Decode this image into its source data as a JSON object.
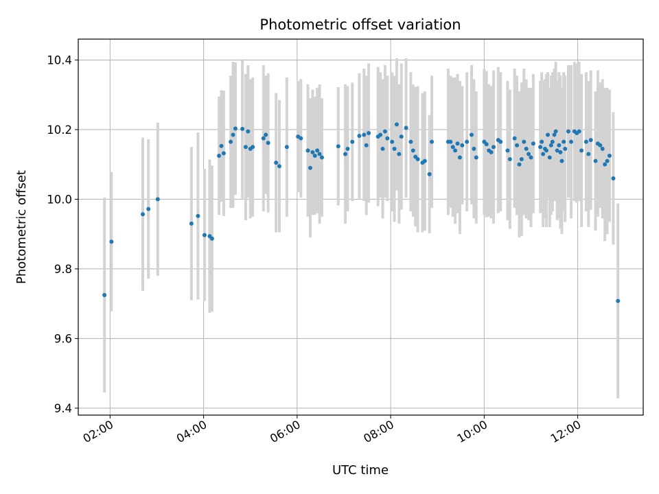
{
  "chart_data": {
    "type": "scatter",
    "title": "Photometric offset variation",
    "xlabel": "UTC time",
    "ylabel": "Photometric offset",
    "xlim": [
      1.32,
      13.4
    ],
    "ylim": [
      9.38,
      10.46
    ],
    "grid": true,
    "x_ticks": [
      2,
      4,
      6,
      8,
      10,
      12
    ],
    "x_tick_labels": [
      "02:00",
      "04:00",
      "06:00",
      "08:00",
      "10:00",
      "12:00"
    ],
    "y_ticks": [
      9.4,
      9.6,
      9.8,
      10.0,
      10.2,
      10.4
    ],
    "y_tick_labels": [
      "9.4",
      "9.6",
      "9.8",
      "10.0",
      "10.2",
      "10.4"
    ],
    "point_color": "#1f77b4",
    "errorbar_color": "#d3d3d3",
    "series": [
      {
        "name": "Photometric offset",
        "x": [
          1.88,
          2.03,
          2.7,
          2.82,
          3.02,
          3.74,
          3.88,
          4.02,
          4.13,
          4.18,
          4.33,
          4.38,
          4.43,
          4.58,
          4.63,
          4.68,
          4.83,
          4.9,
          4.95,
          5.0,
          5.05,
          5.28,
          5.33,
          5.38,
          5.55,
          5.62,
          5.78,
          6.02,
          6.08,
          6.23,
          6.28,
          6.33,
          6.38,
          6.43,
          6.48,
          6.53,
          6.88,
          7.03,
          7.08,
          7.18,
          7.33,
          7.43,
          7.48,
          7.53,
          7.73,
          7.78,
          7.83,
          7.88,
          7.93,
          8.03,
          8.08,
          8.13,
          8.18,
          8.23,
          8.33,
          8.43,
          8.48,
          8.53,
          8.58,
          8.68,
          8.73,
          8.83,
          8.88,
          9.23,
          9.28,
          9.33,
          9.38,
          9.43,
          9.48,
          9.53,
          9.63,
          9.73,
          9.78,
          9.83,
          10.0,
          10.05,
          10.1,
          10.15,
          10.2,
          10.3,
          10.35,
          10.5,
          10.55,
          10.65,
          10.7,
          10.75,
          10.8,
          10.85,
          10.9,
          10.95,
          11.0,
          11.05,
          11.2,
          11.23,
          11.26,
          11.3,
          11.33,
          11.36,
          11.4,
          11.43,
          11.46,
          11.5,
          11.53,
          11.56,
          11.6,
          11.63,
          11.66,
          11.7,
          11.73,
          11.8,
          11.86,
          11.93,
          11.98,
          12.03,
          12.08,
          12.18,
          12.23,
          12.28,
          12.38,
          12.43,
          12.48,
          12.53,
          12.58,
          12.63,
          12.68,
          12.76,
          12.86
        ],
        "y": [
          9.725,
          9.878,
          9.957,
          9.972,
          10.0,
          9.93,
          9.952,
          9.897,
          9.894,
          9.887,
          10.125,
          10.153,
          10.132,
          10.165,
          10.185,
          10.203,
          10.202,
          10.15,
          10.195,
          10.145,
          10.15,
          10.175,
          10.185,
          10.162,
          10.105,
          10.095,
          10.15,
          10.18,
          10.175,
          10.14,
          10.09,
          10.135,
          10.125,
          10.14,
          10.13,
          10.12,
          10.152,
          10.13,
          10.145,
          10.165,
          10.182,
          10.185,
          10.155,
          10.19,
          10.18,
          10.185,
          10.145,
          10.195,
          10.175,
          10.165,
          10.145,
          10.215,
          10.13,
          10.18,
          10.205,
          10.165,
          10.14,
          10.122,
          10.115,
          10.105,
          10.11,
          10.072,
          10.165,
          10.165,
          10.165,
          10.15,
          10.14,
          10.16,
          10.12,
          10.155,
          10.165,
          10.185,
          10.145,
          10.12,
          10.165,
          10.158,
          10.14,
          10.135,
          10.15,
          10.17,
          10.165,
          10.14,
          10.115,
          10.175,
          10.155,
          10.1,
          10.115,
          10.165,
          10.145,
          10.13,
          10.12,
          10.16,
          10.15,
          10.165,
          10.13,
          10.145,
          10.14,
          10.185,
          10.12,
          10.155,
          10.165,
          10.185,
          10.195,
          10.14,
          10.155,
          10.135,
          10.11,
          10.165,
          10.145,
          10.195,
          10.165,
          10.195,
          10.19,
          10.195,
          10.14,
          10.165,
          10.13,
          10.17,
          10.11,
          10.16,
          10.155,
          10.145,
          10.1,
          10.11,
          10.125,
          10.06,
          9.708
        ],
        "err": [
          0.28,
          0.2,
          0.22,
          0.2,
          0.22,
          0.22,
          0.24,
          0.19,
          0.22,
          0.21,
          0.17,
          0.16,
          0.18,
          0.19,
          0.21,
          0.19,
          0.2,
          0.21,
          0.19,
          0.2,
          0.2,
          0.21,
          0.17,
          0.2,
          0.2,
          0.19,
          0.2,
          0.16,
          0.17,
          0.19,
          0.2,
          0.18,
          0.17,
          0.18,
          0.2,
          0.17,
          0.17,
          0.2,
          0.18,
          0.17,
          0.18,
          0.19,
          0.2,
          0.2,
          0.2,
          0.18,
          0.2,
          0.19,
          0.18,
          0.2,
          0.21,
          0.19,
          0.2,
          0.21,
          0.2,
          0.2,
          0.19,
          0.2,
          0.21,
          0.2,
          0.2,
          0.17,
          0.19,
          0.21,
          0.19,
          0.2,
          0.21,
          0.2,
          0.22,
          0.17,
          0.2,
          0.2,
          0.2,
          0.19,
          0.21,
          0.21,
          0.19,
          0.19,
          0.22,
          0.21,
          0.2,
          0.2,
          0.2,
          0.2,
          0.2,
          0.21,
          0.22,
          0.21,
          0.2,
          0.19,
          0.2,
          0.2,
          0.19,
          0.2,
          0.21,
          0.2,
          0.22,
          0.18,
          0.2,
          0.2,
          0.2,
          0.19,
          0.2,
          0.2,
          0.21,
          0.22,
          0.21,
          0.2,
          0.21,
          0.19,
          0.22,
          0.2,
          0.2,
          0.2,
          0.22,
          0.2,
          0.21,
          0.2,
          0.2,
          0.21,
          0.18,
          0.2,
          0.22,
          0.21,
          0.19,
          0.19,
          0.28
        ]
      }
    ]
  }
}
